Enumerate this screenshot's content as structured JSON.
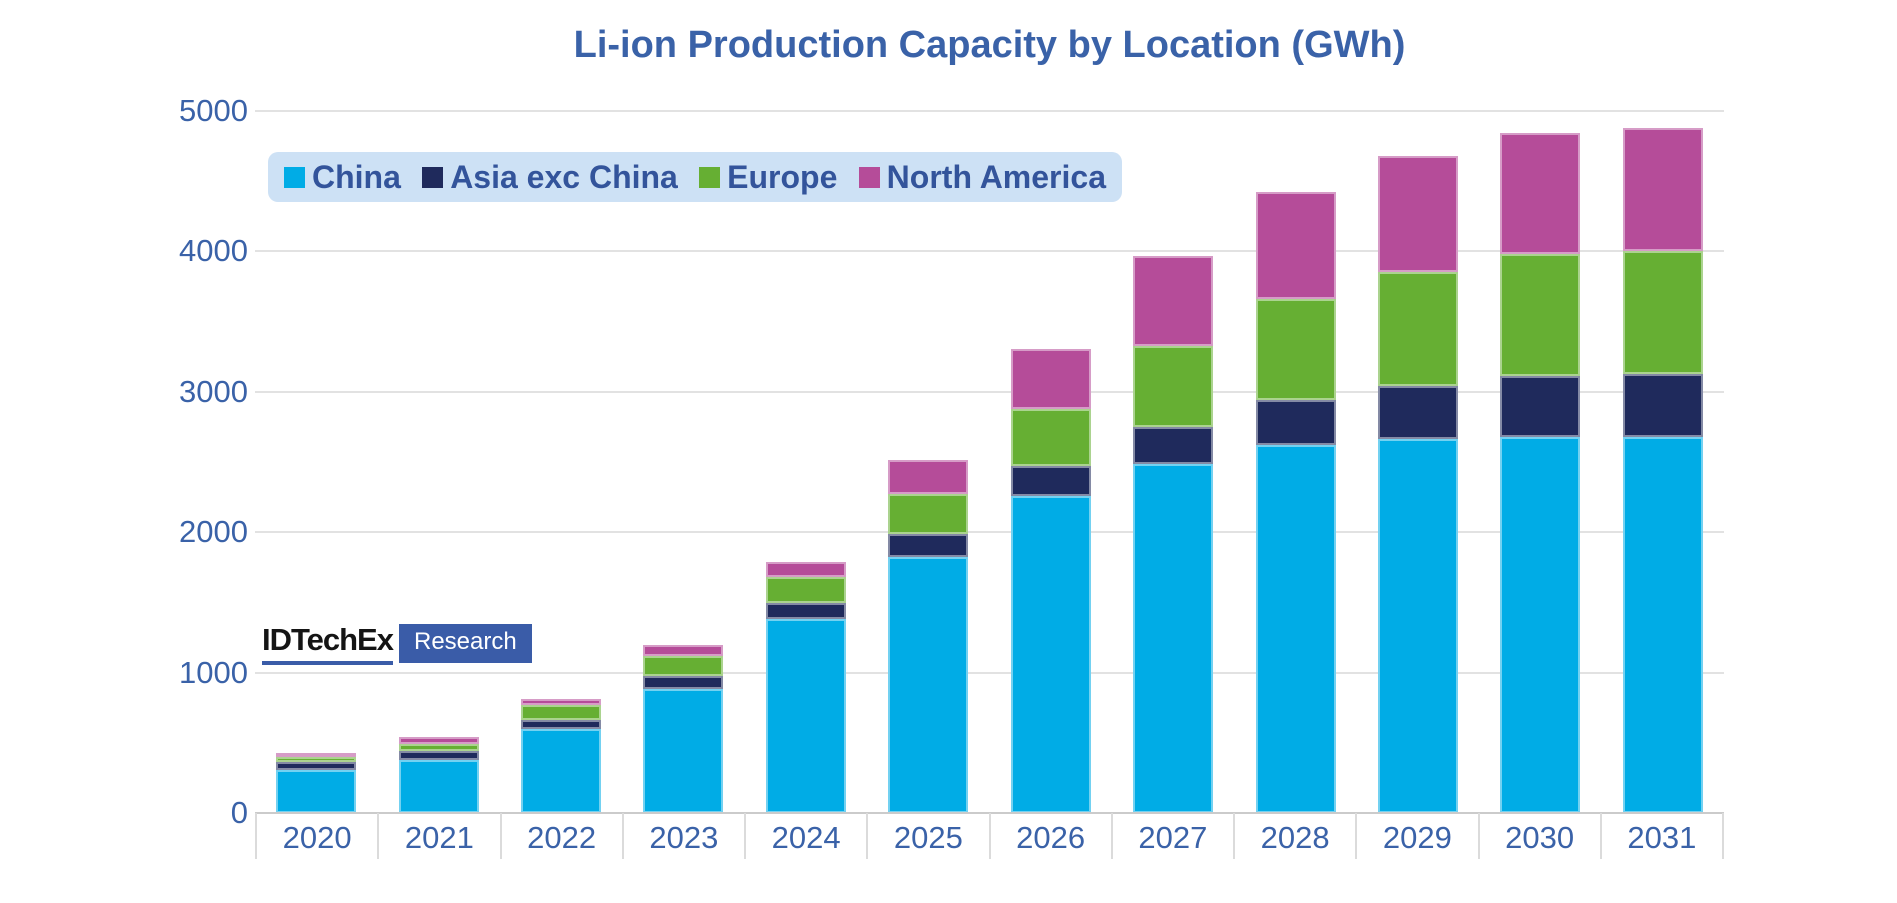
{
  "page": {
    "background": "#FFFFFF"
  },
  "chart_data": {
    "type": "bar",
    "stacked": true,
    "title": "Li-ion Production Capacity by Location (GWh)",
    "categories": [
      "2020",
      "2021",
      "2022",
      "2023",
      "2024",
      "2025",
      "2026",
      "2027",
      "2028",
      "2029",
      "2030",
      "2031"
    ],
    "series": [
      {
        "name": "China",
        "color": "#00ACE6",
        "values": [
          305,
          380,
          595,
          885,
          1385,
          1825,
          2255,
          2485,
          2620,
          2665,
          2675,
          2675
        ]
      },
      {
        "name": "Asia exc China",
        "color": "#1F2A5C",
        "values": [
          60,
          65,
          70,
          90,
          110,
          160,
          220,
          265,
          320,
          380,
          435,
          455
        ]
      },
      {
        "name": "Europe",
        "color": "#66AF33",
        "values": [
          35,
          50,
          105,
          140,
          185,
          290,
          405,
          575,
          720,
          810,
          870,
          870
        ]
      },
      {
        "name": "North America",
        "color": "#B54C99",
        "values": [
          30,
          50,
          45,
          85,
          105,
          240,
          425,
          645,
          765,
          825,
          865,
          880
        ]
      }
    ],
    "totals": [
      430,
      545,
      815,
      1200,
      1785,
      2515,
      3305,
      3970,
      4425,
      4680,
      4845,
      4880
    ],
    "xlabel": "",
    "ylabel": "",
    "ylim": [
      0,
      5000
    ],
    "ytick_step": 1000,
    "yticks": [
      "0",
      "1000",
      "2000",
      "3000",
      "4000",
      "5000"
    ],
    "grid": true,
    "legend_position": "top-left"
  },
  "branding": {
    "logo_text": "IDTechEx",
    "logo_suffix": "Research"
  },
  "colors": {
    "title_text": "#3A62A8",
    "axis_text": "#3A62A8",
    "legend_text": "#33549B",
    "legend_background": "#CDE1F5",
    "gridline": "#E2E2E2",
    "baseline": "#CBCBCB",
    "x_separator": "#DBDBDB",
    "logo_blue": "#3A5CA8"
  }
}
